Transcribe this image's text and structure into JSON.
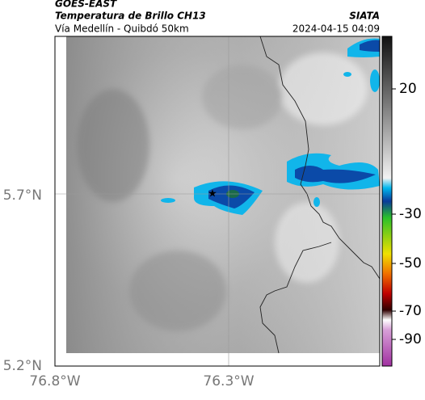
{
  "header": {
    "title": "GOES-EAST",
    "subtitle": "Temperatura de Brillo CH13",
    "location": "Vía Medellín - Quibdó 50km",
    "source": "SIATA",
    "datetime": "2024-04-15 04:09"
  },
  "map": {
    "x_labels": [
      "76.8°W",
      "76.3°W"
    ],
    "y_labels": [
      "5.7°N",
      "5.2°N"
    ]
  },
  "colorbar": {
    "ticks": [
      20,
      -30,
      -50,
      -70,
      -90
    ]
  }
}
